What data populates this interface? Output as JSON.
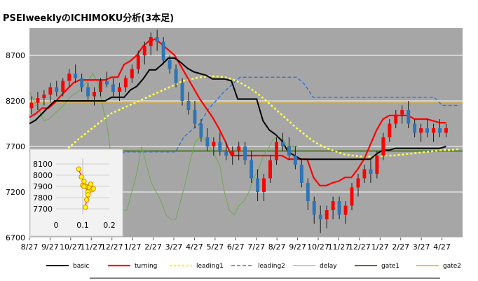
{
  "chart_data": {
    "title": "PSEIweeklyのICHIMOKU分析(3本足)",
    "type": "line",
    "y_ticks": [
      6700,
      7200,
      7700,
      8200,
      8700
    ],
    "ylim": [
      6700,
      9000
    ],
    "x_ticks": [
      "8/27",
      "9/27",
      "10/27",
      "11/27",
      "12/27",
      "1/27",
      "2/27",
      "3/27",
      "4/27",
      "5/27",
      "6/27",
      "7/27",
      "8/27",
      "9/27",
      "10/27",
      "11/27",
      "12/27",
      "1/27",
      "2/27",
      "3/27",
      "4/27"
    ],
    "x_months": 21,
    "gate1": 7650,
    "gate2": 8190,
    "candles": [
      [
        8120,
        8250,
        8050,
        8180
      ],
      [
        8180,
        8300,
        8100,
        8230
      ],
      [
        8230,
        8320,
        8150,
        8270
      ],
      [
        8270,
        8400,
        8180,
        8350
      ],
      [
        8350,
        8420,
        8250,
        8300
      ],
      [
        8300,
        8450,
        8250,
        8420
      ],
      [
        8420,
        8550,
        8350,
        8500
      ],
      [
        8500,
        8600,
        8400,
        8450
      ],
      [
        8450,
        8500,
        8300,
        8350
      ],
      [
        8350,
        8400,
        8200,
        8250
      ],
      [
        8250,
        8350,
        8150,
        8300
      ],
      [
        8300,
        8450,
        8250,
        8420
      ],
      [
        8420,
        8520,
        8350,
        8380
      ],
      [
        8380,
        8450,
        8250,
        8300
      ],
      [
        8300,
        8400,
        8200,
        8350
      ],
      [
        8350,
        8480,
        8300,
        8450
      ],
      [
        8450,
        8600,
        8400,
        8550
      ],
      [
        8550,
        8750,
        8500,
        8700
      ],
      [
        8700,
        8850,
        8600,
        8800
      ],
      [
        8800,
        8950,
        8700,
        8900
      ],
      [
        8900,
        8980,
        8750,
        8850
      ],
      [
        8850,
        8900,
        8600,
        8650
      ],
      [
        8650,
        8700,
        8500,
        8550
      ],
      [
        8550,
        8600,
        8350,
        8400
      ],
      [
        8400,
        8450,
        8150,
        8200
      ],
      [
        8200,
        8300,
        8050,
        8100
      ],
      [
        8100,
        8200,
        7900,
        7950
      ],
      [
        7950,
        8000,
        7750,
        7800
      ],
      [
        7800,
        7900,
        7650,
        7700
      ],
      [
        7700,
        7800,
        7600,
        7750
      ],
      [
        7750,
        7850,
        7600,
        7650
      ],
      [
        7650,
        7750,
        7550,
        7600
      ],
      [
        7600,
        7700,
        7500,
        7650
      ],
      [
        7650,
        7750,
        7550,
        7700
      ],
      [
        7700,
        7750,
        7500,
        7550
      ],
      [
        7550,
        7650,
        7300,
        7350
      ],
      [
        7350,
        7450,
        7100,
        7200
      ],
      [
        7200,
        7400,
        7100,
        7350
      ],
      [
        7350,
        7600,
        7300,
        7550
      ],
      [
        7550,
        7800,
        7500,
        7750
      ],
      [
        7750,
        7850,
        7650,
        7700
      ],
      [
        7700,
        7800,
        7550,
        7600
      ],
      [
        7600,
        7700,
        7450,
        7500
      ],
      [
        7500,
        7550,
        7250,
        7300
      ],
      [
        7300,
        7350,
        7000,
        7100
      ],
      [
        7100,
        7150,
        6850,
        6950
      ],
      [
        6950,
        7050,
        6750,
        6900
      ],
      [
        6900,
        7050,
        6800,
        7000
      ],
      [
        7000,
        7150,
        6900,
        7100
      ],
      [
        7100,
        7150,
        6900,
        6950
      ],
      [
        6950,
        7100,
        6850,
        7050
      ],
      [
        7050,
        7300,
        7000,
        7250
      ],
      [
        7250,
        7400,
        7150,
        7350
      ],
      [
        7350,
        7500,
        7300,
        7450
      ],
      [
        7450,
        7550,
        7300,
        7400
      ],
      [
        7400,
        7650,
        7350,
        7600
      ],
      [
        7600,
        7850,
        7550,
        7800
      ],
      [
        7800,
        8000,
        7750,
        7950
      ],
      [
        7950,
        8100,
        7900,
        8050
      ],
      [
        8050,
        8150,
        7950,
        8100
      ],
      [
        8100,
        8200,
        7900,
        7950
      ],
      [
        7950,
        8000,
        7800,
        7850
      ],
      [
        7850,
        7950,
        7750,
        7900
      ],
      [
        7900,
        8000,
        7800,
        7850
      ],
      [
        7850,
        7950,
        7750,
        7900
      ],
      [
        7900,
        8000,
        7800,
        7850
      ],
      [
        7850,
        7950,
        7800,
        7900
      ]
    ],
    "basic": [
      7950,
      7990,
      8060,
      8130,
      8200,
      8200,
      8200,
      8200,
      8200,
      8200,
      8200,
      8200,
      8200,
      8240,
      8240,
      8240,
      8320,
      8360,
      8440,
      8540,
      8540,
      8600,
      8670,
      8670,
      8620,
      8560,
      8520,
      8500,
      8480,
      8440,
      8440,
      8440,
      8420,
      8220,
      8220,
      8220,
      8220,
      7980,
      7880,
      7830,
      7760,
      7640,
      7600,
      7560,
      7560,
      7560,
      7560,
      7560,
      7560,
      7560,
      7560,
      7560,
      7560,
      7560,
      7560,
      7620,
      7660,
      7660,
      7680,
      7680,
      7680,
      7680,
      7680,
      7680,
      7680,
      7680,
      7700
    ],
    "turning": [
      8020,
      8060,
      8120,
      8120,
      8180,
      8260,
      8330,
      8400,
      8430,
      8430,
      8430,
      8430,
      8430,
      8460,
      8460,
      8600,
      8640,
      8700,
      8800,
      8860,
      8880,
      8820,
      8760,
      8700,
      8580,
      8460,
      8340,
      8220,
      8120,
      8020,
      7900,
      7760,
      7600,
      7600,
      7600,
      7600,
      7600,
      7600,
      7600,
      7600,
      7600,
      7560,
      7560,
      7560,
      7560,
      7360,
      7270,
      7270,
      7300,
      7320,
      7360,
      7360,
      7450,
      7560,
      7720,
      7880,
      8000,
      8040,
      8040,
      8040,
      8040,
      8000,
      8000,
      8000,
      7980,
      7960,
      7960
    ],
    "leading1": [
      7580,
      7620,
      7700,
      7780,
      7850,
      7920,
      7990,
      8060,
      8100,
      8140,
      8180,
      8220,
      8260,
      8300,
      8340,
      8380,
      8420,
      8440,
      8460,
      8470,
      8470,
      8460,
      8440,
      8400,
      8350,
      8290,
      8220,
      8140,
      8060,
      7980,
      7900,
      7830,
      7760,
      7710,
      7670,
      7640,
      7610,
      7600,
      7590,
      7590,
      7590,
      7600,
      7600,
      7610,
      7620,
      7630,
      7640,
      7650,
      7660,
      7660,
      7670
    ],
    "leading2": [
      7600,
      7600,
      7600,
      7600,
      7600,
      7600,
      7600,
      7620,
      7620,
      7640,
      7640,
      7640,
      7640,
      7640,
      7640,
      7640,
      7800,
      7880,
      7950,
      8100,
      8200,
      8300,
      8380,
      8460,
      8460,
      8460,
      8460,
      8460,
      8460,
      8460,
      8460,
      8380,
      8240,
      8240,
      8240,
      8240,
      8240,
      8240,
      8240,
      8240,
      8240,
      8240,
      8240,
      8240,
      8240,
      8240,
      8240,
      8240,
      8150,
      8150,
      8150
    ],
    "delay": [
      8300,
      8200,
      8100,
      7980,
      8000,
      8050,
      8100,
      8150,
      8220,
      8270,
      8300,
      8360,
      8420,
      8500,
      8400,
      8150,
      7900,
      7500,
      7250,
      7000,
      7000,
      7200,
      7400,
      7700,
      7500,
      7300,
      7200,
      7100,
      6950,
      6900,
      6900,
      7100,
      7300,
      7550,
      7750,
      7800,
      7780,
      7700,
      7600,
      7500,
      7200,
      7000,
      6950,
      7050,
      7100,
      7200,
      7350,
      7450,
      7600,
      7680,
      7780,
      7800,
      7780,
      7700,
      7700,
      7700
    ],
    "legend": [
      "basic",
      "turning",
      "leading1",
      "leading2",
      "delay",
      "gate1",
      "gate2"
    ],
    "series_colors": {
      "basic": "#000000",
      "turning": "#ff0000",
      "leading1": "#ffff44",
      "leading2": "#3a78c8",
      "delay": "#70a850",
      "gate1": "#4f7a28",
      "gate2": "#ffc000",
      "up": "#ff0000",
      "down": "#2e75b6"
    },
    "inset": {
      "x_ticks": [
        "0",
        "0.1",
        "0.2"
      ],
      "y_ticks": [
        "7700",
        "7800",
        "7900",
        "8000",
        "8100"
      ],
      "xlim": [
        0,
        0.2
      ],
      "ylim": [
        7650,
        8150
      ],
      "x": [
        0.085,
        0.095,
        0.105,
        0.1,
        0.115,
        0.125,
        0.135,
        0.12,
        0.11,
        0.105,
        0.13,
        0.14,
        0.12,
        0.115,
        0.11
      ],
      "y": [
        8055,
        7985,
        7945,
        7910,
        7895,
        7890,
        7870,
        7850,
        7900,
        7900,
        7920,
        7880,
        7825,
        7780,
        7715
      ]
    }
  }
}
